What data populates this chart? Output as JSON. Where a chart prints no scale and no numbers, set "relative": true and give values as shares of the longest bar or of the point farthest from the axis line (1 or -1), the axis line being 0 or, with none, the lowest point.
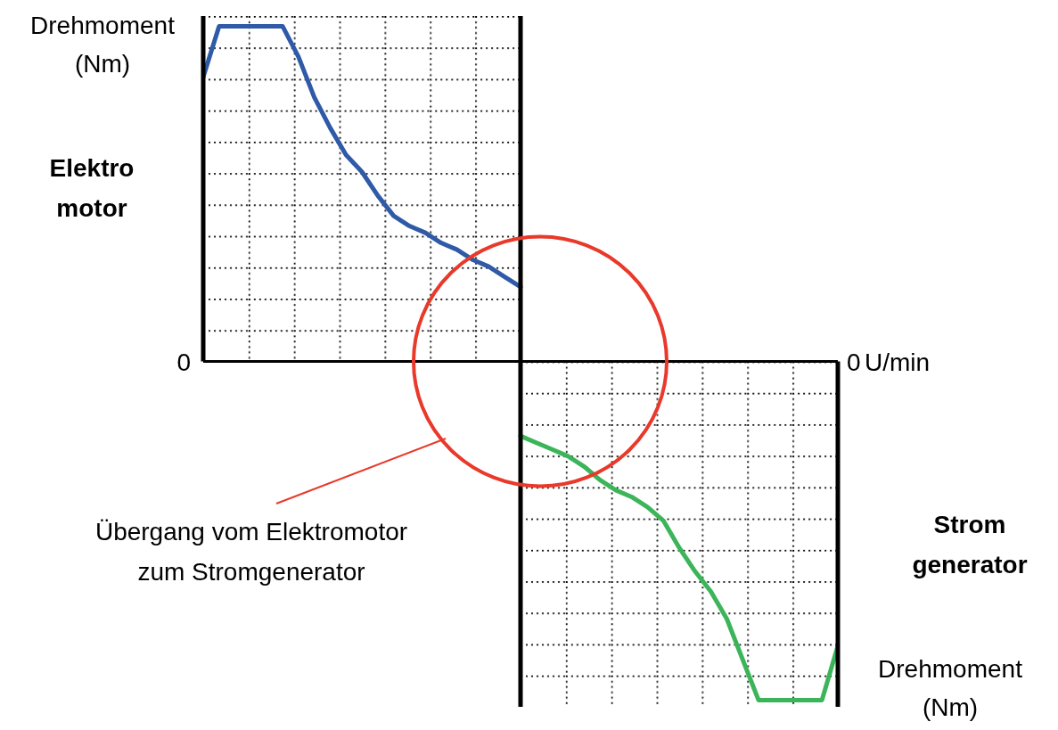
{
  "chart_data": {
    "type": "line",
    "relative": true,
    "ylabel": "Drehmoment (Nm)",
    "y2label": "Drehmoment (Nm)",
    "xlabel": "U/min",
    "categories": [
      null,
      null,
      null,
      null,
      null,
      null,
      null,
      null,
      null,
      null,
      null,
      null,
      null,
      null,
      null,
      null,
      null,
      null,
      null,
      null,
      null,
      null,
      null,
      null,
      null,
      null,
      null,
      null,
      null,
      null,
      null,
      null,
      null,
      null,
      null,
      null,
      null,
      null,
      null,
      null,
      null
    ],
    "series": [
      {
        "color": "#2f5aa8",
        "values": [
          0.84,
          0.99,
          0.99,
          0.99,
          0.99,
          0.99,
          0.9,
          0.78,
          0.69,
          0.61,
          0.56,
          0.49,
          0.43,
          0.4,
          0.38,
          0.35,
          0.33,
          0.3,
          0.28,
          0.25,
          0.22,
          null,
          null,
          null,
          null,
          null,
          null,
          null,
          null,
          null,
          null,
          null,
          null,
          null,
          null,
          null,
          null,
          null,
          null,
          null,
          null
        ]
      },
      {
        "color": "#3cb55a",
        "values": [
          null,
          null,
          null,
          null,
          null,
          null,
          null,
          null,
          null,
          null,
          null,
          null,
          null,
          null,
          null,
          null,
          null,
          null,
          null,
          null,
          -0.22,
          -0.24,
          -0.26,
          -0.28,
          -0.31,
          -0.35,
          -0.38,
          -0.4,
          -0.43,
          -0.47,
          -0.55,
          -0.62,
          -0.68,
          -0.76,
          -0.88,
          -1,
          -1,
          -1,
          -1,
          -1,
          -0.84
        ]
      }
    ],
    "annotations": [
      "0",
      "0",
      "Übergang vom Elektromotor zum Stromgenerator",
      "Elektro motor",
      "Strom generator"
    ]
  }
}
